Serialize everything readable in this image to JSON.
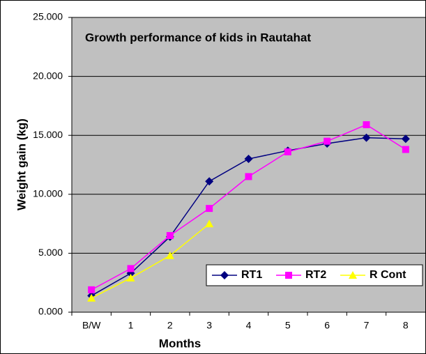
{
  "chart_data": {
    "type": "line",
    "title": "Growth performance of kids in Rautahat",
    "xlabel": "Months",
    "ylabel": "Weight gain (kg)",
    "categories": [
      "B/W",
      "1",
      "2",
      "3",
      "4",
      "5",
      "6",
      "7",
      "8"
    ],
    "series": [
      {
        "name": "RT1",
        "color": "#000080",
        "marker": "diamond",
        "values": [
          1.4,
          3.3,
          6.4,
          11.1,
          13.0,
          13.7,
          14.3,
          14.8,
          14.7
        ]
      },
      {
        "name": "RT2",
        "color": "#ff00ff",
        "marker": "square",
        "values": [
          1.9,
          3.7,
          6.5,
          8.8,
          11.5,
          13.6,
          14.5,
          15.9,
          13.8
        ]
      },
      {
        "name": "R Cont",
        "color": "#ffff00",
        "marker": "triangle",
        "values": [
          1.2,
          2.9,
          4.8,
          7.5,
          null,
          null,
          null,
          null,
          null
        ]
      }
    ],
    "ylim": [
      0,
      25
    ],
    "yticks": [
      {
        "value": 0,
        "label": "0.000"
      },
      {
        "value": 5,
        "label": "5.000"
      },
      {
        "value": 10,
        "label": "10.000"
      },
      {
        "value": 15,
        "label": "15.000"
      },
      {
        "value": 20,
        "label": "20.000"
      },
      {
        "value": 25,
        "label": "25.000"
      }
    ],
    "grid": true,
    "legend": "lower right"
  }
}
